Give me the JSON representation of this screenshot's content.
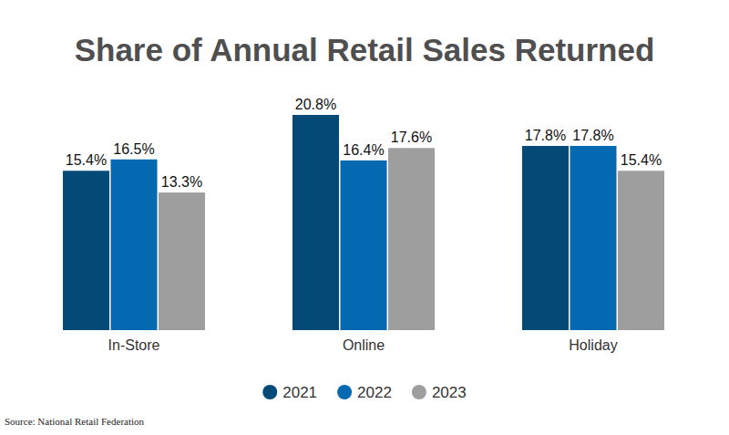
{
  "chart_data": {
    "type": "bar",
    "title": "Share of Annual Retail Sales Returned",
    "source": "Source: National Retail Federation",
    "categories": [
      "In-Store",
      "Online",
      "Holiday"
    ],
    "series": [
      {
        "name": "2021",
        "color": "#044a76",
        "values": [
          15.4,
          20.8,
          17.8
        ],
        "value_labels": [
          "15.4%",
          "20.8%",
          "17.8%"
        ]
      },
      {
        "name": "2022",
        "color": "#0569b2",
        "values": [
          16.5,
          16.4,
          17.8
        ],
        "value_labels": [
          "16.5%",
          "16.4%",
          "17.8%"
        ]
      },
      {
        "name": "2023",
        "color": "#9e9e9e",
        "values": [
          13.3,
          17.6,
          15.4
        ],
        "value_labels": [
          "13.3%",
          "17.6%",
          "15.4%"
        ]
      }
    ],
    "ylim": [
      0,
      20.8
    ],
    "grid": false,
    "data_labels": true,
    "tick_labels": "x",
    "legend": "bottom"
  }
}
